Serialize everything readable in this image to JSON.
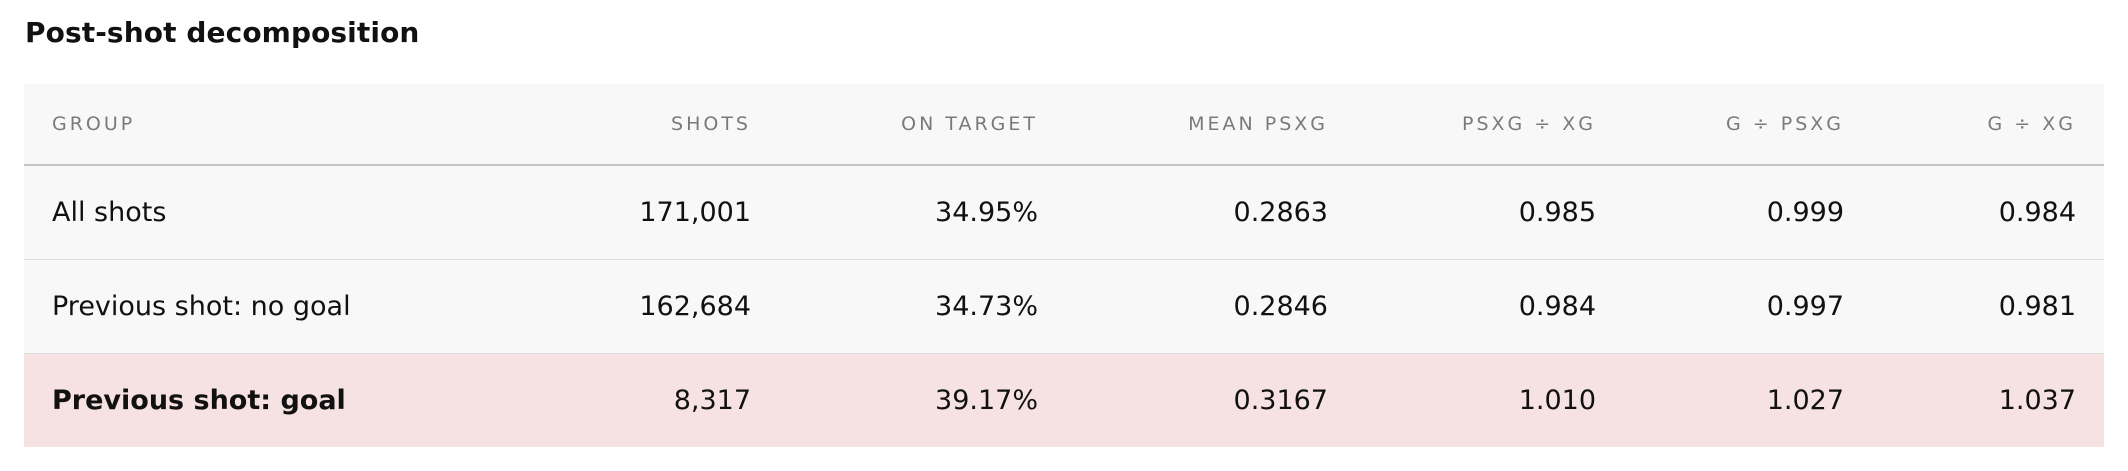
{
  "section": {
    "title": "Post-shot decomposition"
  },
  "table": {
    "headers": {
      "group": "GROUP",
      "shots": "SHOTS",
      "on_target": "ON TARGET",
      "mean_psxg": "MEAN PSXG",
      "psxg_xg": "PSXG ÷ XG",
      "g_psxg": "G ÷ PSXG",
      "g_xg": "G ÷ XG"
    },
    "rows": [
      {
        "group": "All shots",
        "shots": "171,001",
        "on_target": "34.95%",
        "mean_psxg": "0.2863",
        "psxg_xg": "0.985",
        "g_psxg": "0.999",
        "g_xg": "0.984"
      },
      {
        "group": "Previous shot: no goal",
        "shots": "162,684",
        "on_target": "34.73%",
        "mean_psxg": "0.2846",
        "psxg_xg": "0.984",
        "g_psxg": "0.997",
        "g_xg": "0.981"
      },
      {
        "group": "Previous shot: goal",
        "shots": "8,317",
        "on_target": "39.17%",
        "mean_psxg": "0.3167",
        "psxg_xg": "1.010",
        "g_psxg": "1.027",
        "g_xg": "1.037"
      }
    ]
  },
  "colors": {
    "header_bg": "#f8f8f8",
    "row_bg": "#f8f8f8",
    "highlight_row_bg": "#f6e1e3",
    "header_text": "#7a7a7a"
  }
}
